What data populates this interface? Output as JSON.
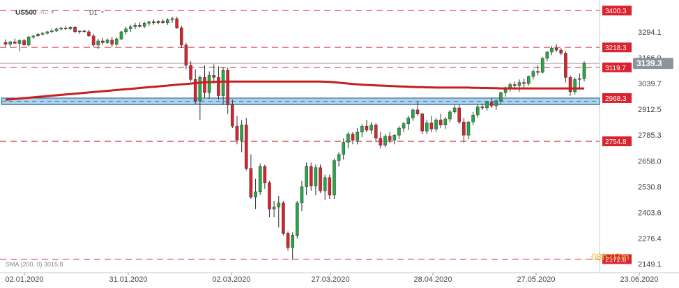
{
  "header": {
    "symbol": "US500",
    "symbol_tag": "IND",
    "timeframe": "D1"
  },
  "indicator_label": "SMA (200, 0) 3015.8",
  "timer_text": "08h 07m",
  "colors": {
    "bull": "#27a745",
    "bear": "#d9232e",
    "sma": "#c81e1e",
    "level": "#d9232e",
    "zone_fill": "#a9d3f0",
    "zone_border": "#1e5a8c",
    "current_price_bg": "#8c959d",
    "grid": "#ececec"
  },
  "chart_data": {
    "type": "candlestick",
    "x_ticks": [
      "02.01.2020",
      "31.01.2020",
      "02.03.2020",
      "27.03.2020",
      "28.04.2020",
      "27.05.2020",
      "23.06.2020"
    ],
    "y_ticks": [
      3294.1,
      3166.9,
      3039.7,
      2912.5,
      2785.3,
      2658.0,
      2530.8,
      2403.6,
      2276.4,
      2149.1
    ],
    "ylim": [
      2130,
      3425
    ],
    "resistance_support_levels": [
      3400.3,
      3218.3,
      3119.7,
      2754.8,
      2172.8
    ],
    "support_zone": {
      "top": 2968.3,
      "bottom": 2936.5,
      "label": "2968.3"
    },
    "current_price": 3139.3,
    "sma": {
      "label": "SMA (200, 0)",
      "value": 3015.8
    },
    "candles": [
      [
        3244,
        3258,
        3222,
        3234
      ],
      [
        3234,
        3250,
        3220,
        3246
      ],
      [
        3246,
        3262,
        3238,
        3238
      ],
      [
        3238,
        3258,
        3200,
        3253
      ],
      [
        3253,
        3260,
        3228,
        3230
      ],
      [
        3230,
        3275,
        3223,
        3270
      ],
      [
        3270,
        3280,
        3260,
        3275
      ],
      [
        3275,
        3290,
        3270,
        3283
      ],
      [
        3283,
        3295,
        3278,
        3288
      ],
      [
        3288,
        3300,
        3282,
        3295
      ],
      [
        3295,
        3310,
        3290,
        3300
      ],
      [
        3300,
        3316,
        3294,
        3309
      ],
      [
        3309,
        3320,
        3302,
        3314
      ],
      [
        3314,
        3325,
        3305,
        3310
      ],
      [
        3310,
        3322,
        3305,
        3318
      ],
      [
        3318,
        3324,
        3290,
        3295
      ],
      [
        3295,
        3303,
        3285,
        3300
      ],
      [
        3300,
        3305,
        3292,
        3295
      ],
      [
        3295,
        3305,
        3270,
        3275
      ],
      [
        3275,
        3285,
        3220,
        3230
      ],
      [
        3230,
        3260,
        3212,
        3250
      ],
      [
        3250,
        3265,
        3232,
        3242
      ],
      [
        3242,
        3262,
        3235,
        3255
      ],
      [
        3255,
        3270,
        3220,
        3234
      ],
      [
        3234,
        3268,
        3225,
        3260
      ],
      [
        3260,
        3300,
        3255,
        3295
      ],
      [
        3295,
        3320,
        3282,
        3310
      ],
      [
        3310,
        3330,
        3295,
        3320
      ],
      [
        3320,
        3340,
        3308,
        3328
      ],
      [
        3328,
        3342,
        3316,
        3322
      ],
      [
        3322,
        3345,
        3315,
        3338
      ],
      [
        3338,
        3350,
        3325,
        3345
      ],
      [
        3345,
        3356,
        3330,
        3340
      ],
      [
        3340,
        3352,
        3333,
        3348
      ],
      [
        3348,
        3358,
        3335,
        3340
      ],
      [
        3340,
        3362,
        3330,
        3355
      ],
      [
        3355,
        3370,
        3340,
        3360
      ],
      [
        3360,
        3370,
        3310,
        3315
      ],
      [
        3315,
        3325,
        3215,
        3230
      ],
      [
        3230,
        3240,
        3110,
        3130
      ],
      [
        3130,
        3150,
        3050,
        3060
      ],
      [
        3060,
        3110,
        2940,
        2955
      ],
      [
        2955,
        3080,
        2860,
        3070
      ],
      [
        3070,
        3130,
        2970,
        2995
      ],
      [
        2995,
        3100,
        2965,
        3080
      ],
      [
        3080,
        3135,
        3040,
        3070
      ],
      [
        3070,
        3125,
        2960,
        2980
      ],
      [
        2980,
        3120,
        2935,
        3105
      ],
      [
        3105,
        3120,
        2890,
        2935
      ],
      [
        2935,
        2960,
        2820,
        2830
      ],
      [
        2830,
        2880,
        2740,
        2760
      ],
      [
        2760,
        2860,
        2700,
        2835
      ],
      [
        2835,
        2870,
        2610,
        2620
      ],
      [
        2620,
        2690,
        2470,
        2480
      ],
      [
        2480,
        2570,
        2420,
        2505
      ],
      [
        2505,
        2645,
        2490,
        2630
      ],
      [
        2630,
        2640,
        2520,
        2550
      ],
      [
        2550,
        2560,
        2380,
        2420
      ],
      [
        2420,
        2460,
        2380,
        2430
      ],
      [
        2430,
        2485,
        2330,
        2450
      ],
      [
        2450,
        2460,
        2290,
        2300
      ],
      [
        2300,
        2310,
        2215,
        2230
      ],
      [
        2230,
        2305,
        2170,
        2290
      ],
      [
        2290,
        2460,
        2275,
        2450
      ],
      [
        2450,
        2560,
        2410,
        2530
      ],
      [
        2530,
        2650,
        2490,
        2630
      ],
      [
        2630,
        2650,
        2510,
        2535
      ],
      [
        2535,
        2640,
        2490,
        2625
      ],
      [
        2625,
        2640,
        2500,
        2510
      ],
      [
        2510,
        2590,
        2465,
        2575
      ],
      [
        2575,
        2590,
        2470,
        2490
      ],
      [
        2490,
        2670,
        2470,
        2660
      ],
      [
        2660,
        2700,
        2630,
        2690
      ],
      [
        2690,
        2770,
        2665,
        2750
      ],
      [
        2750,
        2800,
        2720,
        2790
      ],
      [
        2790,
        2800,
        2740,
        2760
      ],
      [
        2760,
        2820,
        2740,
        2800
      ],
      [
        2800,
        2840,
        2775,
        2830
      ],
      [
        2830,
        2860,
        2800,
        2810
      ],
      [
        2810,
        2850,
        2790,
        2835
      ],
      [
        2835,
        2845,
        2750,
        2770
      ],
      [
        2770,
        2800,
        2720,
        2735
      ],
      [
        2735,
        2790,
        2725,
        2780
      ],
      [
        2780,
        2800,
        2745,
        2760
      ],
      [
        2760,
        2790,
        2740,
        2785
      ],
      [
        2785,
        2830,
        2765,
        2820
      ],
      [
        2820,
        2850,
        2800,
        2842
      ],
      [
        2842,
        2880,
        2810,
        2870
      ],
      [
        2870,
        2915,
        2855,
        2910
      ],
      [
        2910,
        2950,
        2880,
        2890
      ],
      [
        2890,
        2895,
        2790,
        2805
      ],
      [
        2805,
        2860,
        2790,
        2845
      ],
      [
        2845,
        2880,
        2800,
        2815
      ],
      [
        2815,
        2870,
        2800,
        2860
      ],
      [
        2860,
        2890,
        2820,
        2835
      ],
      [
        2835,
        2875,
        2815,
        2865
      ],
      [
        2865,
        2910,
        2850,
        2900
      ],
      [
        2900,
        2935,
        2890,
        2920
      ],
      [
        2920,
        2935,
        2840,
        2850
      ],
      [
        2850,
        2870,
        2750,
        2785
      ],
      [
        2785,
        2855,
        2765,
        2850
      ],
      [
        2850,
        2900,
        2835,
        2885
      ],
      [
        2885,
        2935,
        2870,
        2925
      ],
      [
        2925,
        2940,
        2910,
        2920
      ],
      [
        2920,
        2955,
        2905,
        2948
      ],
      [
        2948,
        2970,
        2920,
        2930
      ],
      [
        2930,
        2960,
        2910,
        2955
      ],
      [
        2955,
        3000,
        2940,
        2995
      ],
      [
        2995,
        3025,
        2975,
        3020
      ],
      [
        3020,
        3045,
        3000,
        3035
      ],
      [
        3035,
        3050,
        3010,
        3030
      ],
      [
        3030,
        3060,
        3000,
        3045
      ],
      [
        3045,
        3065,
        3020,
        3040
      ],
      [
        3040,
        3080,
        3030,
        3075
      ],
      [
        3075,
        3110,
        3060,
        3100
      ],
      [
        3100,
        3130,
        3080,
        3095
      ],
      [
        3095,
        3170,
        3090,
        3165
      ],
      [
        3165,
        3200,
        3150,
        3195
      ],
      [
        3195,
        3225,
        3180,
        3215
      ],
      [
        3215,
        3235,
        3195,
        3205
      ],
      [
        3205,
        3215,
        3180,
        3190
      ],
      [
        3190,
        3200,
        3045,
        3070
      ],
      [
        3070,
        3080,
        2980,
        3000
      ],
      [
        3000,
        3070,
        2985,
        3060
      ],
      [
        3060,
        3090,
        3010,
        3065
      ],
      [
        3065,
        3150,
        3050,
        3139
      ]
    ],
    "sma_values": [
      2960,
      2962,
      2964,
      2966,
      2968,
      2970,
      2972,
      2974,
      2976,
      2978,
      2980,
      2982,
      2984,
      2986,
      2988,
      2990,
      2992,
      2994,
      2996,
      2998,
      3000,
      3002,
      3004,
      3006,
      3008,
      3010,
      3012,
      3014,
      3016,
      3018,
      3020,
      3022,
      3024,
      3026,
      3028,
      3030,
      3032,
      3034,
      3036,
      3038,
      3040,
      3042,
      3044,
      3046,
      3047,
      3048,
      3049,
      3050,
      3050,
      3050,
      3050,
      3050,
      3050,
      3050,
      3050,
      3050,
      3050,
      3050,
      3050,
      3050,
      3050,
      3050,
      3050,
      3050,
      3050,
      3050,
      3050,
      3050,
      3050,
      3049,
      3048,
      3046,
      3044,
      3042,
      3040,
      3038,
      3036,
      3034,
      3033,
      3032,
      3031,
      3030,
      3029,
      3028,
      3027,
      3026,
      3025,
      3024,
      3023,
      3022,
      3022,
      3021,
      3021,
      3020,
      3020,
      3020,
      3020,
      3020,
      3020,
      3020,
      3020,
      3019,
      3019,
      3018,
      3018,
      3017,
      3017,
      3016,
      3016,
      3016,
      3016,
      3016,
      3016,
      3016,
      3016,
      3016,
      3016,
      3016,
      3016,
      3016,
      3016,
      3016,
      3016,
      3016,
      3016,
      3016
    ]
  }
}
